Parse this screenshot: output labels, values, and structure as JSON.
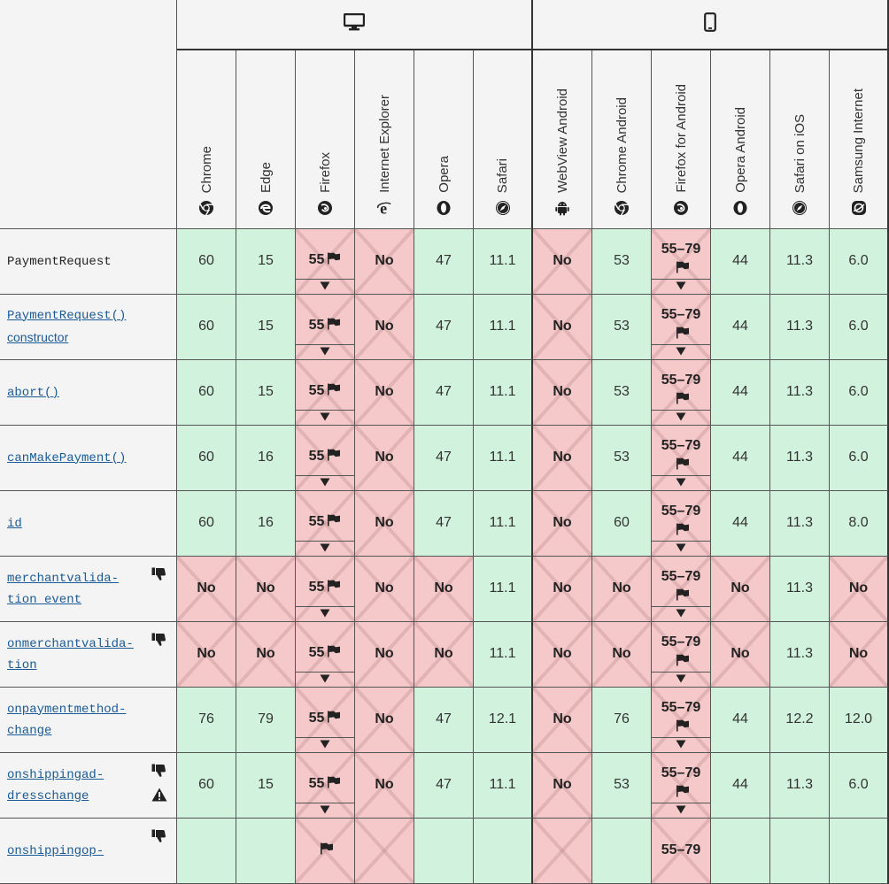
{
  "platforms": [
    {
      "name": "Desktop",
      "icon": "desktop-icon"
    },
    {
      "name": "Mobile",
      "icon": "mobile-icon"
    }
  ],
  "browsers": [
    {
      "name": "Chrome",
      "icon": "chrome-icon",
      "platform": 0
    },
    {
      "name": "Edge",
      "icon": "edge-icon",
      "platform": 0
    },
    {
      "name": "Firefox",
      "icon": "firefox-icon",
      "platform": 0
    },
    {
      "name": "Internet Explorer",
      "icon": "ie-icon",
      "platform": 0
    },
    {
      "name": "Opera",
      "icon": "opera-icon",
      "platform": 0
    },
    {
      "name": "Safari",
      "icon": "safari-icon",
      "platform": 0
    },
    {
      "name": "WebView Android",
      "icon": "android-icon",
      "platform": 1
    },
    {
      "name": "Chrome Android",
      "icon": "chrome-icon",
      "platform": 1
    },
    {
      "name": "Firefox for Android",
      "icon": "firefox-icon",
      "platform": 1
    },
    {
      "name": "Opera Android",
      "icon": "opera-icon",
      "platform": 1
    },
    {
      "name": "Safari on iOS",
      "icon": "safari-icon",
      "platform": 1
    },
    {
      "name": "Samsung Internet",
      "icon": "samsung-icon",
      "platform": 1
    }
  ],
  "colors": {
    "yes": "#d1f2dc",
    "no": "#f5c9ca",
    "header": "#f4f4f4",
    "link": "#1a5a96"
  },
  "rows": [
    {
      "feature": [
        "PaymentRequest"
      ],
      "link": false,
      "icons": [],
      "support": [
        {
          "v": "60",
          "s": "yes"
        },
        {
          "v": "15",
          "s": "yes"
        },
        {
          "v": "55",
          "s": "no",
          "flag": true,
          "toggle": true
        },
        {
          "v": "No",
          "s": "no"
        },
        {
          "v": "47",
          "s": "yes"
        },
        {
          "v": "11.1",
          "s": "yes"
        },
        {
          "v": "No",
          "s": "no"
        },
        {
          "v": "53",
          "s": "yes"
        },
        {
          "v": "55–79",
          "s": "no",
          "flag": true,
          "toggle": true
        },
        {
          "v": "44",
          "s": "yes"
        },
        {
          "v": "11.3",
          "s": "yes"
        },
        {
          "v": "6.0",
          "s": "yes"
        }
      ]
    },
    {
      "feature": [
        "PaymentRequest()",
        "constructor"
      ],
      "link": true,
      "icons": [],
      "support": [
        {
          "v": "60",
          "s": "yes"
        },
        {
          "v": "15",
          "s": "yes"
        },
        {
          "v": "55",
          "s": "no",
          "flag": true,
          "toggle": true
        },
        {
          "v": "No",
          "s": "no"
        },
        {
          "v": "47",
          "s": "yes"
        },
        {
          "v": "11.1",
          "s": "yes"
        },
        {
          "v": "No",
          "s": "no"
        },
        {
          "v": "53",
          "s": "yes"
        },
        {
          "v": "55–79",
          "s": "no",
          "flag": true,
          "toggle": true
        },
        {
          "v": "44",
          "s": "yes"
        },
        {
          "v": "11.3",
          "s": "yes"
        },
        {
          "v": "6.0",
          "s": "yes"
        }
      ]
    },
    {
      "feature": [
        "abort()"
      ],
      "link": true,
      "icons": [],
      "support": [
        {
          "v": "60",
          "s": "yes"
        },
        {
          "v": "15",
          "s": "yes"
        },
        {
          "v": "55",
          "s": "no",
          "flag": true,
          "toggle": true
        },
        {
          "v": "No",
          "s": "no"
        },
        {
          "v": "47",
          "s": "yes"
        },
        {
          "v": "11.1",
          "s": "yes"
        },
        {
          "v": "No",
          "s": "no"
        },
        {
          "v": "53",
          "s": "yes"
        },
        {
          "v": "55–79",
          "s": "no",
          "flag": true,
          "toggle": true
        },
        {
          "v": "44",
          "s": "yes"
        },
        {
          "v": "11.3",
          "s": "yes"
        },
        {
          "v": "6.0",
          "s": "yes"
        }
      ]
    },
    {
      "feature": [
        "canMakePayment()"
      ],
      "link": true,
      "icons": [],
      "support": [
        {
          "v": "60",
          "s": "yes"
        },
        {
          "v": "16",
          "s": "yes"
        },
        {
          "v": "55",
          "s": "no",
          "flag": true,
          "toggle": true
        },
        {
          "v": "No",
          "s": "no"
        },
        {
          "v": "47",
          "s": "yes"
        },
        {
          "v": "11.1",
          "s": "yes"
        },
        {
          "v": "No",
          "s": "no"
        },
        {
          "v": "53",
          "s": "yes"
        },
        {
          "v": "55–79",
          "s": "no",
          "flag": true,
          "toggle": true
        },
        {
          "v": "44",
          "s": "yes"
        },
        {
          "v": "11.3",
          "s": "yes"
        },
        {
          "v": "6.0",
          "s": "yes"
        }
      ]
    },
    {
      "feature": [
        "id"
      ],
      "link": true,
      "icons": [],
      "support": [
        {
          "v": "60",
          "s": "yes"
        },
        {
          "v": "16",
          "s": "yes"
        },
        {
          "v": "55",
          "s": "no",
          "flag": true,
          "toggle": true
        },
        {
          "v": "No",
          "s": "no"
        },
        {
          "v": "47",
          "s": "yes"
        },
        {
          "v": "11.1",
          "s": "yes"
        },
        {
          "v": "No",
          "s": "no"
        },
        {
          "v": "60",
          "s": "yes"
        },
        {
          "v": "55–79",
          "s": "no",
          "flag": true,
          "toggle": true
        },
        {
          "v": "44",
          "s": "yes"
        },
        {
          "v": "11.3",
          "s": "yes"
        },
        {
          "v": "8.0",
          "s": "yes"
        }
      ]
    },
    {
      "feature": [
        "merchantvalida-",
        "tion event"
      ],
      "link": true,
      "icons": [
        "thumbs-down-icon"
      ],
      "support": [
        {
          "v": "No",
          "s": "no"
        },
        {
          "v": "No",
          "s": "no"
        },
        {
          "v": "55",
          "s": "no",
          "flag": true,
          "toggle": true
        },
        {
          "v": "No",
          "s": "no"
        },
        {
          "v": "No",
          "s": "no"
        },
        {
          "v": "11.1",
          "s": "yes"
        },
        {
          "v": "No",
          "s": "no"
        },
        {
          "v": "No",
          "s": "no"
        },
        {
          "v": "55–79",
          "s": "no",
          "flag": true,
          "toggle": true
        },
        {
          "v": "No",
          "s": "no"
        },
        {
          "v": "11.3",
          "s": "yes"
        },
        {
          "v": "No",
          "s": "no"
        }
      ]
    },
    {
      "feature": [
        "onmerchantvalida-",
        "tion"
      ],
      "link": true,
      "icons": [
        "thumbs-down-icon"
      ],
      "support": [
        {
          "v": "No",
          "s": "no"
        },
        {
          "v": "No",
          "s": "no"
        },
        {
          "v": "55",
          "s": "no",
          "flag": true,
          "toggle": true
        },
        {
          "v": "No",
          "s": "no"
        },
        {
          "v": "No",
          "s": "no"
        },
        {
          "v": "11.1",
          "s": "yes"
        },
        {
          "v": "No",
          "s": "no"
        },
        {
          "v": "No",
          "s": "no"
        },
        {
          "v": "55–79",
          "s": "no",
          "flag": true,
          "toggle": true
        },
        {
          "v": "No",
          "s": "no"
        },
        {
          "v": "11.3",
          "s": "yes"
        },
        {
          "v": "No",
          "s": "no"
        }
      ]
    },
    {
      "feature": [
        "onpaymentmethod-",
        "change"
      ],
      "link": true,
      "icons": [],
      "support": [
        {
          "v": "76",
          "s": "yes"
        },
        {
          "v": "79",
          "s": "yes"
        },
        {
          "v": "55",
          "s": "no",
          "flag": true,
          "toggle": true
        },
        {
          "v": "No",
          "s": "no"
        },
        {
          "v": "47",
          "s": "yes"
        },
        {
          "v": "12.1",
          "s": "yes"
        },
        {
          "v": "No",
          "s": "no"
        },
        {
          "v": "76",
          "s": "yes"
        },
        {
          "v": "55–79",
          "s": "no",
          "flag": true,
          "toggle": true
        },
        {
          "v": "44",
          "s": "yes"
        },
        {
          "v": "12.2",
          "s": "yes"
        },
        {
          "v": "12.0",
          "s": "yes"
        }
      ]
    },
    {
      "feature": [
        "onshippingad-",
        "dresschange"
      ],
      "link": true,
      "icons": [
        "thumbs-down-icon",
        "warning-icon"
      ],
      "support": [
        {
          "v": "60",
          "s": "yes"
        },
        {
          "v": "15",
          "s": "yes"
        },
        {
          "v": "55",
          "s": "no",
          "flag": true,
          "toggle": true
        },
        {
          "v": "No",
          "s": "no"
        },
        {
          "v": "47",
          "s": "yes"
        },
        {
          "v": "11.1",
          "s": "yes"
        },
        {
          "v": "No",
          "s": "no"
        },
        {
          "v": "53",
          "s": "yes"
        },
        {
          "v": "55–79",
          "s": "no",
          "flag": true,
          "toggle": true
        },
        {
          "v": "44",
          "s": "yes"
        },
        {
          "v": "11.3",
          "s": "yes"
        },
        {
          "v": "6.0",
          "s": "yes"
        }
      ]
    },
    {
      "feature": [
        "onshippingop-"
      ],
      "link": true,
      "icons": [
        "thumbs-down-icon"
      ],
      "support": [
        {
          "v": "",
          "s": "yes"
        },
        {
          "v": "",
          "s": "yes"
        },
        {
          "v": "",
          "s": "no",
          "flag": true
        },
        {
          "v": "",
          "s": "no"
        },
        {
          "v": "",
          "s": "yes"
        },
        {
          "v": "",
          "s": "yes"
        },
        {
          "v": "",
          "s": "no"
        },
        {
          "v": "",
          "s": "yes"
        },
        {
          "v": "55–79",
          "s": "no"
        },
        {
          "v": "",
          "s": "yes"
        },
        {
          "v": "",
          "s": "yes"
        },
        {
          "v": "",
          "s": "yes"
        }
      ]
    }
  ]
}
